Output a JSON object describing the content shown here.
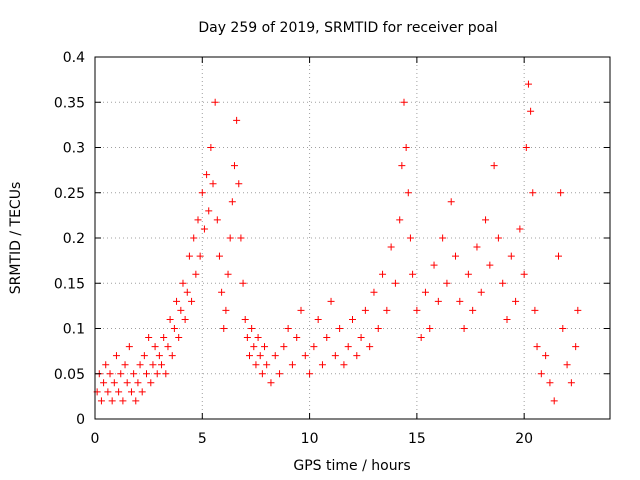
{
  "chart_data": {
    "type": "scatter",
    "title": "Day 259 of 2019, SRMTID for receiver poal",
    "xlabel": "GPS time / hours",
    "ylabel": "SRMTID / TECUs",
    "xlim": [
      0,
      24
    ],
    "ylim": [
      0,
      0.4
    ],
    "x_ticks": [
      0,
      5,
      10,
      15,
      20
    ],
    "x_tick_labels": [
      "0",
      "5",
      "10",
      "15",
      "20"
    ],
    "y_ticks": [
      0,
      0.05,
      0.1,
      0.15,
      0.2,
      0.25,
      0.3,
      0.35,
      0.4
    ],
    "y_tick_labels": [
      "0",
      "0.05",
      "0.1",
      "0.15",
      "0.2",
      "0.25",
      "0.3",
      "0.35",
      "0.4"
    ],
    "grid": true,
    "marker": "+",
    "color": "#ff0000",
    "series": [
      {
        "name": "SRMTID",
        "points": [
          [
            0.1,
            0.03
          ],
          [
            0.2,
            0.05
          ],
          [
            0.3,
            0.02
          ],
          [
            0.4,
            0.04
          ],
          [
            0.5,
            0.06
          ],
          [
            0.6,
            0.03
          ],
          [
            0.7,
            0.05
          ],
          [
            0.8,
            0.02
          ],
          [
            0.9,
            0.04
          ],
          [
            1.0,
            0.07
          ],
          [
            1.1,
            0.03
          ],
          [
            1.2,
            0.05
          ],
          [
            1.3,
            0.02
          ],
          [
            1.4,
            0.06
          ],
          [
            1.5,
            0.04
          ],
          [
            1.6,
            0.08
          ],
          [
            1.7,
            0.03
          ],
          [
            1.8,
            0.05
          ],
          [
            1.9,
            0.02
          ],
          [
            2.0,
            0.04
          ],
          [
            2.1,
            0.06
          ],
          [
            2.2,
            0.03
          ],
          [
            2.3,
            0.07
          ],
          [
            2.4,
            0.05
          ],
          [
            2.5,
            0.09
          ],
          [
            2.6,
            0.04
          ],
          [
            2.7,
            0.06
          ],
          [
            2.8,
            0.08
          ],
          [
            2.9,
            0.05
          ],
          [
            3.0,
            0.07
          ],
          [
            3.1,
            0.06
          ],
          [
            3.2,
            0.09
          ],
          [
            3.3,
            0.05
          ],
          [
            3.4,
            0.08
          ],
          [
            3.5,
            0.11
          ],
          [
            3.6,
            0.07
          ],
          [
            3.7,
            0.1
          ],
          [
            3.8,
            0.13
          ],
          [
            3.9,
            0.09
          ],
          [
            4.0,
            0.12
          ],
          [
            4.1,
            0.15
          ],
          [
            4.2,
            0.11
          ],
          [
            4.3,
            0.14
          ],
          [
            4.4,
            0.18
          ],
          [
            4.5,
            0.13
          ],
          [
            4.6,
            0.2
          ],
          [
            4.7,
            0.16
          ],
          [
            4.8,
            0.22
          ],
          [
            4.9,
            0.18
          ],
          [
            5.0,
            0.25
          ],
          [
            5.1,
            0.21
          ],
          [
            5.2,
            0.27
          ],
          [
            5.3,
            0.23
          ],
          [
            5.4,
            0.3
          ],
          [
            5.5,
            0.26
          ],
          [
            5.6,
            0.35
          ],
          [
            5.7,
            0.22
          ],
          [
            5.8,
            0.18
          ],
          [
            5.9,
            0.14
          ],
          [
            6.0,
            0.1
          ],
          [
            6.1,
            0.12
          ],
          [
            6.2,
            0.16
          ],
          [
            6.3,
            0.2
          ],
          [
            6.4,
            0.24
          ],
          [
            6.5,
            0.28
          ],
          [
            6.6,
            0.33
          ],
          [
            6.7,
            0.26
          ],
          [
            6.8,
            0.2
          ],
          [
            6.9,
            0.15
          ],
          [
            7.0,
            0.11
          ],
          [
            7.1,
            0.09
          ],
          [
            7.2,
            0.07
          ],
          [
            7.3,
            0.1
          ],
          [
            7.4,
            0.08
          ],
          [
            7.5,
            0.06
          ],
          [
            7.6,
            0.09
          ],
          [
            7.7,
            0.07
          ],
          [
            7.8,
            0.05
          ],
          [
            7.9,
            0.08
          ],
          [
            8.0,
            0.06
          ],
          [
            8.2,
            0.04
          ],
          [
            8.4,
            0.07
          ],
          [
            8.6,
            0.05
          ],
          [
            8.8,
            0.08
          ],
          [
            9.0,
            0.1
          ],
          [
            9.2,
            0.06
          ],
          [
            9.4,
            0.09
          ],
          [
            9.6,
            0.12
          ],
          [
            9.8,
            0.07
          ],
          [
            10.0,
            0.05
          ],
          [
            10.2,
            0.08
          ],
          [
            10.4,
            0.11
          ],
          [
            10.6,
            0.06
          ],
          [
            10.8,
            0.09
          ],
          [
            11.0,
            0.13
          ],
          [
            11.2,
            0.07
          ],
          [
            11.4,
            0.1
          ],
          [
            11.6,
            0.06
          ],
          [
            11.8,
            0.08
          ],
          [
            12.0,
            0.11
          ],
          [
            12.2,
            0.07
          ],
          [
            12.4,
            0.09
          ],
          [
            12.6,
            0.12
          ],
          [
            12.8,
            0.08
          ],
          [
            13.0,
            0.14
          ],
          [
            13.2,
            0.1
          ],
          [
            13.4,
            0.16
          ],
          [
            13.6,
            0.12
          ],
          [
            13.8,
            0.19
          ],
          [
            14.0,
            0.15
          ],
          [
            14.2,
            0.22
          ],
          [
            14.3,
            0.28
          ],
          [
            14.4,
            0.35
          ],
          [
            14.5,
            0.3
          ],
          [
            14.6,
            0.25
          ],
          [
            14.7,
            0.2
          ],
          [
            14.8,
            0.16
          ],
          [
            15.0,
            0.12
          ],
          [
            15.2,
            0.09
          ],
          [
            15.4,
            0.14
          ],
          [
            15.6,
            0.1
          ],
          [
            15.8,
            0.17
          ],
          [
            16.0,
            0.13
          ],
          [
            16.2,
            0.2
          ],
          [
            16.4,
            0.15
          ],
          [
            16.6,
            0.24
          ],
          [
            16.8,
            0.18
          ],
          [
            17.0,
            0.13
          ],
          [
            17.2,
            0.1
          ],
          [
            17.4,
            0.16
          ],
          [
            17.6,
            0.12
          ],
          [
            17.8,
            0.19
          ],
          [
            18.0,
            0.14
          ],
          [
            18.2,
            0.22
          ],
          [
            18.4,
            0.17
          ],
          [
            18.6,
            0.28
          ],
          [
            18.8,
            0.2
          ],
          [
            19.0,
            0.15
          ],
          [
            19.2,
            0.11
          ],
          [
            19.4,
            0.18
          ],
          [
            19.6,
            0.13
          ],
          [
            19.8,
            0.21
          ],
          [
            20.0,
            0.16
          ],
          [
            20.1,
            0.3
          ],
          [
            20.2,
            0.37
          ],
          [
            20.3,
            0.34
          ],
          [
            20.4,
            0.25
          ],
          [
            20.5,
            0.12
          ],
          [
            20.6,
            0.08
          ],
          [
            20.8,
            0.05
          ],
          [
            21.0,
            0.07
          ],
          [
            21.2,
            0.04
          ],
          [
            21.4,
            0.02
          ],
          [
            21.6,
            0.18
          ],
          [
            21.7,
            0.25
          ],
          [
            21.8,
            0.1
          ],
          [
            22.0,
            0.06
          ],
          [
            22.2,
            0.04
          ],
          [
            22.4,
            0.08
          ],
          [
            22.5,
            0.12
          ]
        ]
      }
    ]
  }
}
